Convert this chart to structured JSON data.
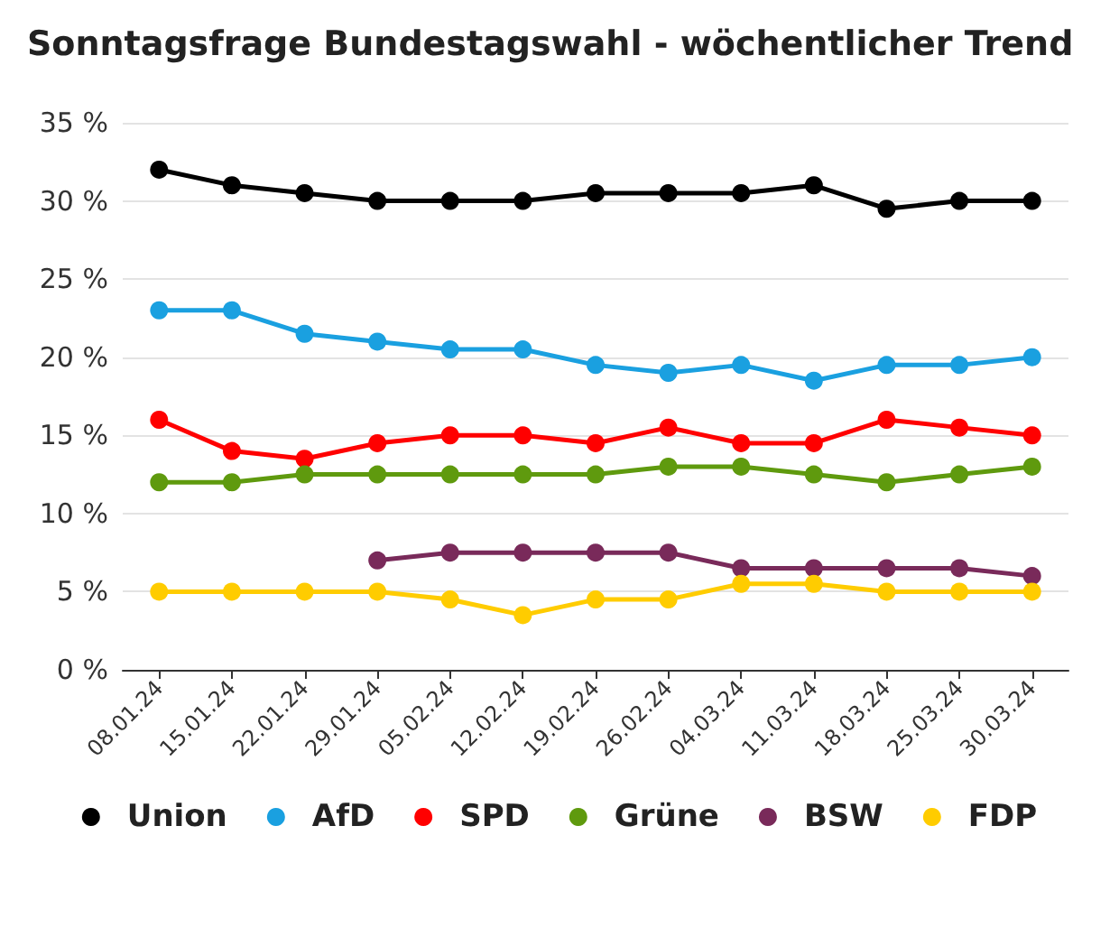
{
  "chart_data": {
    "type": "line",
    "title": "Sonntagsfrage Bundestagswahl - wöchentlicher Trend",
    "categories": [
      "08.01.24",
      "15.01.24",
      "22.01.24",
      "29.01.24",
      "05.02.24",
      "12.02.24",
      "19.02.24",
      "26.02.24",
      "04.03.24",
      "11.03.24",
      "18.03.24",
      "25.03.24",
      "30.03.24"
    ],
    "series": [
      {
        "name": "Union",
        "color": "#000000",
        "values": [
          32,
          31,
          30.5,
          30,
          30,
          30,
          30.5,
          30.5,
          30.5,
          31,
          29.5,
          30,
          30
        ]
      },
      {
        "name": "AfD",
        "color": "#1aa0e0",
        "values": [
          23,
          23,
          21.5,
          21,
          20.5,
          20.5,
          19.5,
          19,
          19.5,
          18.5,
          19.5,
          19.5,
          20
        ]
      },
      {
        "name": "SPD",
        "color": "#ff0000",
        "values": [
          16,
          14,
          13.5,
          14.5,
          15,
          15,
          14.5,
          15.5,
          14.5,
          14.5,
          16,
          15.5,
          15
        ]
      },
      {
        "name": "Grüne",
        "color": "#5f9a0e",
        "values": [
          12,
          12,
          12.5,
          12.5,
          12.5,
          12.5,
          12.5,
          13,
          13,
          12.5,
          12,
          12.5,
          13
        ]
      },
      {
        "name": "BSW",
        "color": "#792a5a",
        "values": [
          null,
          null,
          null,
          7,
          7.5,
          7.5,
          7.5,
          7.5,
          6.5,
          6.5,
          6.5,
          6.5,
          6
        ]
      },
      {
        "name": "FDP",
        "color": "#ffcc00",
        "values": [
          5,
          5,
          5,
          5,
          4.5,
          3.5,
          4.5,
          4.5,
          5.5,
          5.5,
          5,
          5,
          5
        ]
      }
    ],
    "ylim": [
      0,
      35
    ],
    "yticks": [
      {
        "value": 0,
        "label": "0 %"
      },
      {
        "value": 5,
        "label": "5 %"
      },
      {
        "value": 10,
        "label": "10 %"
      },
      {
        "value": 15,
        "label": "15 %"
      },
      {
        "value": 20,
        "label": "20 %"
      },
      {
        "value": 25,
        "label": "25 %"
      },
      {
        "value": 30,
        "label": "30 %"
      },
      {
        "value": 35,
        "label": "35 %"
      }
    ],
    "grid": "y",
    "legend": "bottom",
    "marker": "circle",
    "line_style": "solid"
  }
}
